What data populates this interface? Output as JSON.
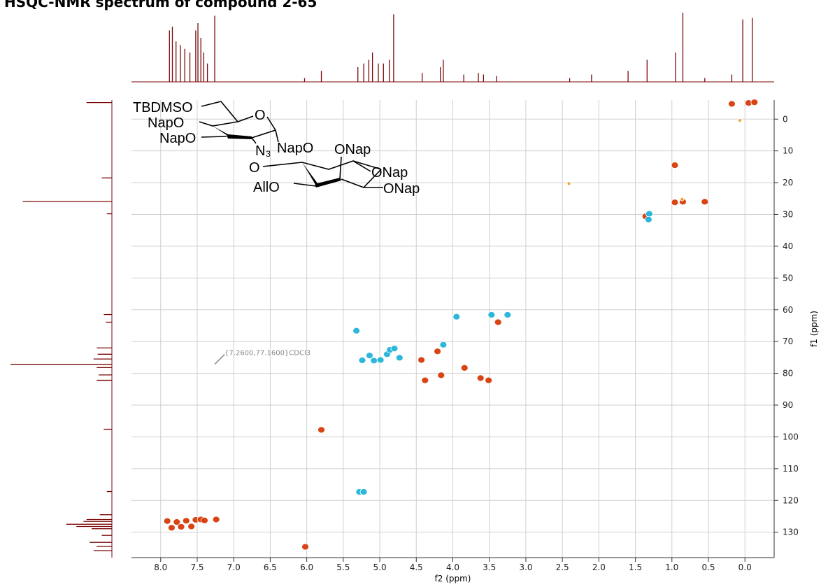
{
  "chart_data": {
    "type": "contour",
    "title": "HSQC-NMR spectrum of compound 2-65",
    "xlabel": "f2 (ppm)",
    "ylabel": "f1 (ppm)",
    "xlim": [
      8.4,
      -0.4
    ],
    "ylim": [
      -6,
      138
    ],
    "xticks": [
      {
        "value": 8,
        "label": "8.0"
      },
      7.5,
      {
        "value": 7,
        "label": "7.0"
      },
      6.5,
      {
        "value": 6,
        "label": "6.0"
      },
      5.5,
      {
        "value": 5,
        "label": "5.0"
      },
      4.5,
      {
        "value": 4,
        "label": "4.0"
      },
      3.5,
      {
        "value": 3,
        "label": "3.0"
      },
      2.5,
      {
        "value": 2,
        "label": "2.0"
      },
      1.5,
      {
        "value": 1,
        "label": "1.0"
      },
      0.5,
      {
        "value": 0,
        "label": "0.0"
      }
    ],
    "yticks": [
      0,
      10,
      20,
      30,
      40,
      50,
      60,
      70,
      80,
      90,
      100,
      110,
      120,
      130
    ],
    "grid": true,
    "series": [
      {
        "color": "#d63a06",
        "x": [
          0.18,
          -0.05,
          -0.13,
          0.96,
          0.96,
          0.85,
          0.55,
          1.36,
          5.8,
          4.43,
          4.38,
          4.21,
          4.16,
          3.84,
          3.62,
          3.51,
          3.38,
          6.02,
          7.91,
          7.85,
          7.78,
          7.72,
          7.65,
          7.58,
          7.52,
          7.45,
          7.4,
          7.24
        ],
        "values": [
          -4.8,
          -5.1,
          -5.3,
          14.5,
          26.2,
          26.0,
          26.0,
          30.6,
          97.8,
          75.8,
          82.2,
          73.1,
          80.6,
          78.3,
          81.5,
          82.2,
          63.9,
          134.6,
          126.5,
          128.6,
          126.8,
          128.3,
          126.4,
          128.2,
          126.1,
          126.0,
          126.3,
          126.0
        ]
      },
      {
        "color": "#22b3d9",
        "x": [
          5.32,
          5.24,
          5.14,
          5.08,
          4.99,
          4.9,
          4.86,
          4.8,
          4.73,
          4.13,
          3.95,
          3.47,
          3.25,
          5.28,
          5.22,
          1.31,
          1.32
        ],
        "values": [
          66.6,
          75.9,
          74.4,
          76.0,
          75.8,
          74.0,
          72.6,
          72.2,
          75.1,
          71.0,
          62.2,
          61.6,
          61.6,
          117.3,
          117.3,
          29.8,
          31.6
        ]
      },
      {
        "color": "#f0a020",
        "x": [
          0.07,
          2.41,
          0.86
        ],
        "values": [
          0.4,
          20.3,
          25.2
        ]
      }
    ],
    "annotation": {
      "text": "{7.2600,77.1600}CDCl3",
      "x": 7.26,
      "y": 77.16
    },
    "f2_projection": {
      "color": "#7a0a0a",
      "ppm": [
        7.88,
        7.84,
        7.79,
        7.73,
        7.67,
        7.6,
        7.52,
        7.49,
        7.45,
        7.41,
        7.36,
        7.26,
        6.03,
        5.8,
        5.3,
        5.22,
        5.15,
        5.1,
        5.02,
        4.95,
        4.87,
        4.81,
        4.42,
        4.17,
        4.13,
        3.85,
        3.65,
        3.58,
        3.4,
        2.4,
        2.1,
        1.6,
        1.34,
        0.95,
        0.85,
        0.55,
        0.18,
        0.03,
        -0.1
      ],
      "values": [
        70,
        75,
        55,
        50,
        45,
        40,
        70,
        80,
        60,
        40,
        25,
        90,
        5,
        15,
        20,
        25,
        30,
        40,
        25,
        25,
        30,
        92,
        12,
        20,
        30,
        10,
        12,
        10,
        8,
        5,
        10,
        15,
        30,
        40,
        94,
        5,
        10,
        85,
        87
      ]
    },
    "f1_projection": {
      "color": "#7a0a0a",
      "ppm": [
        -5.2,
        18.5,
        25.9,
        29.8,
        61.5,
        63.9,
        72.0,
        74.0,
        75.5,
        77.16,
        78.2,
        80.5,
        82.2,
        97.6,
        117.2,
        124.5,
        126.0,
        126.6,
        127.5,
        128.2,
        128.9,
        131.0,
        133.2,
        134.5,
        135.8
      ],
      "values": [
        25,
        10,
        88,
        5,
        8,
        6,
        15,
        14,
        18,
        100,
        15,
        13,
        15,
        8,
        5,
        12,
        25,
        28,
        45,
        35,
        20,
        10,
        22,
        15,
        18
      ]
    },
    "structure": {
      "labels": [
        "TBDMSO",
        "NapO",
        "NapO",
        "O",
        "N₃",
        "NapO",
        "ONap",
        "O",
        "ONap",
        "AllO",
        "ONap"
      ]
    }
  }
}
